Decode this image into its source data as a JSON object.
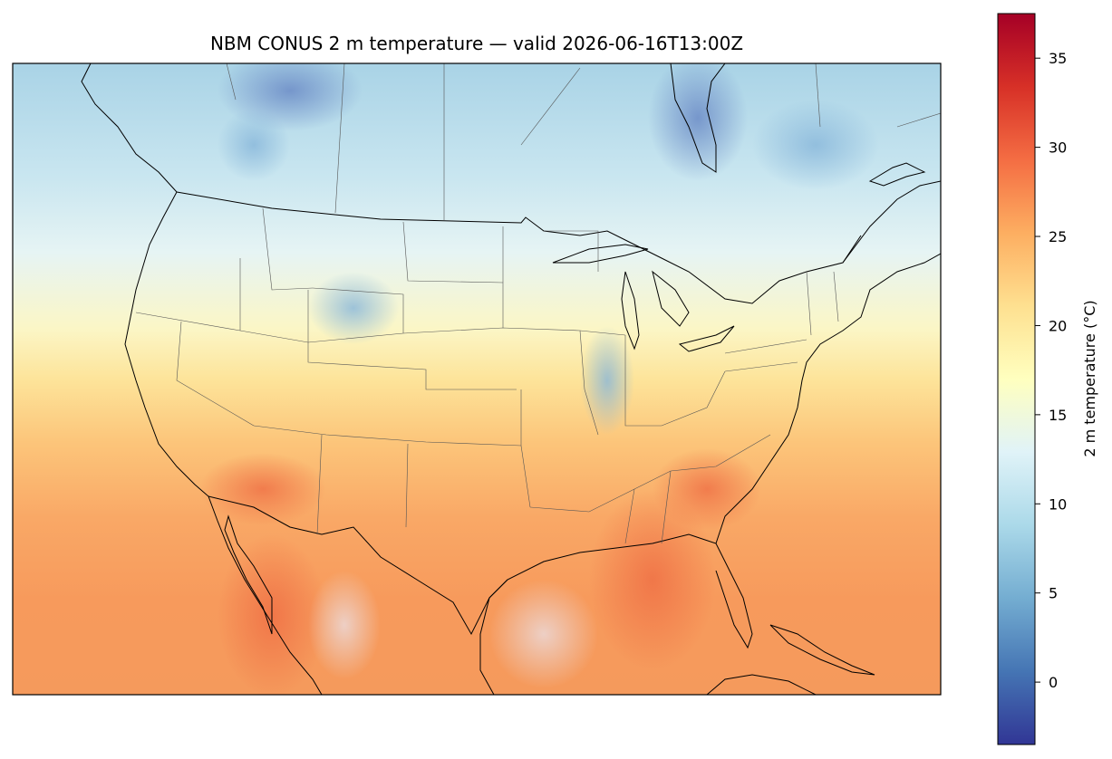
{
  "title": "NBM CONUS 2 m temperature — valid 2026-06-16T13:00Z",
  "colorbar": {
    "label": "2 m temperature (°C)",
    "min": -3.5,
    "max": 37.5,
    "ticks": [
      0,
      5,
      10,
      15,
      20,
      25,
      30,
      35
    ],
    "tick_labels": [
      "0",
      "5",
      "10",
      "15",
      "20",
      "25",
      "30",
      "35"
    ],
    "colormap": "RdYlBu_r",
    "stops": [
      "#313695",
      "#4575b4",
      "#74add1",
      "#abd9e9",
      "#e0f3f8",
      "#ffffbf",
      "#fee090",
      "#fdae61",
      "#f46d43",
      "#d73027",
      "#a50026"
    ]
  },
  "map": {
    "projection": "lambert-conformal",
    "region": "CONUS"
  }
}
